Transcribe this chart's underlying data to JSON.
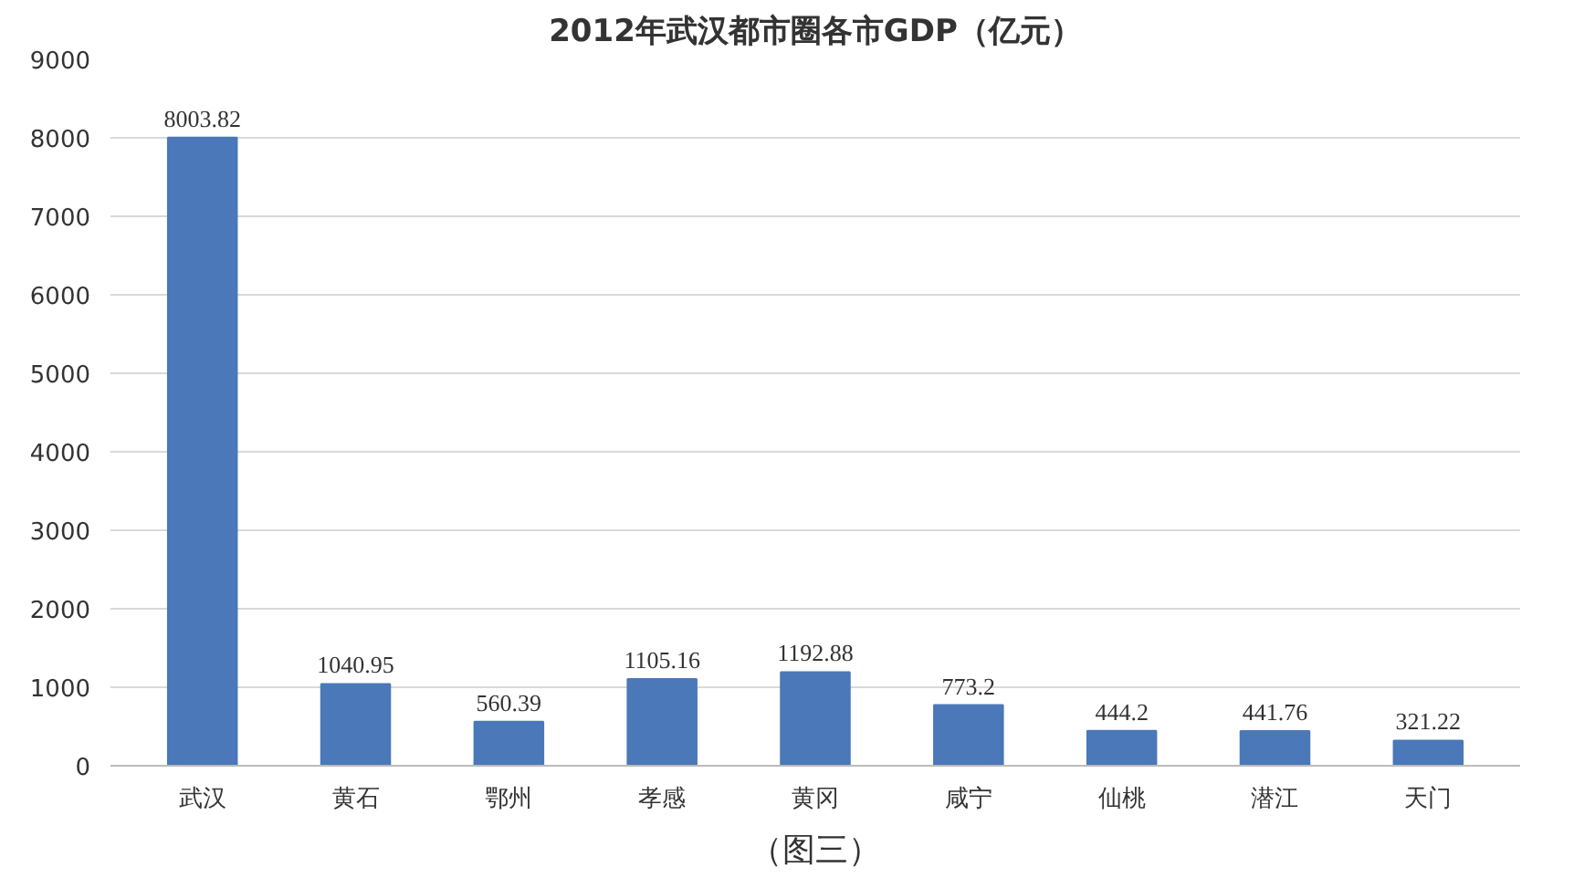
{
  "chart_data": {
    "type": "bar",
    "title": "2012年武汉都市圈各市GDP（亿元）",
    "categories": [
      "武汉",
      "黄石",
      "鄂州",
      "孝感",
      "黄冈",
      "咸宁",
      "仙桃",
      "潜江",
      "天门"
    ],
    "values": [
      8003.82,
      1040.95,
      560.39,
      1105.16,
      1192.88,
      773.2,
      444.2,
      441.76,
      321.22
    ],
    "color": "#4a78b8",
    "ylim": [
      0,
      9000
    ],
    "yticks": [
      0,
      1000,
      2000,
      3000,
      4000,
      5000,
      6000,
      7000,
      8000,
      9000
    ],
    "grid": "y",
    "data_labels": true,
    "annotations": [
      "（图三）"
    ]
  }
}
